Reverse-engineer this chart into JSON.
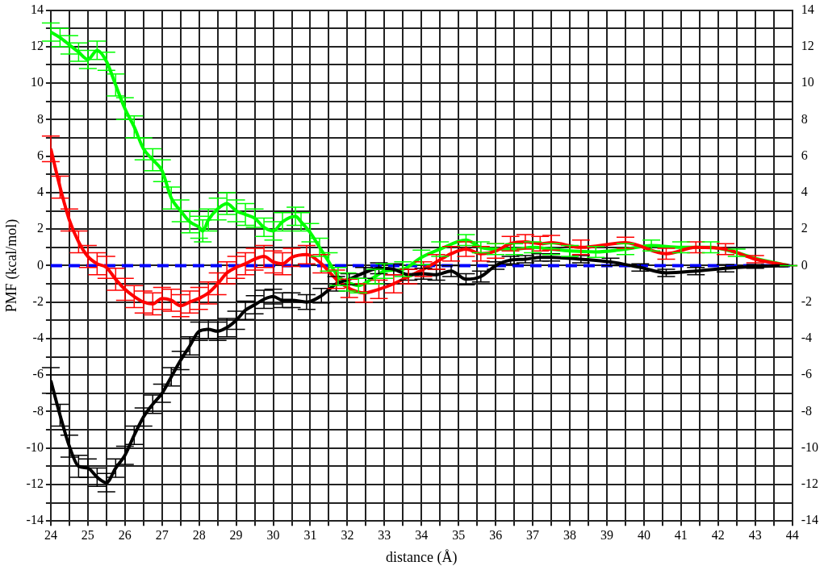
{
  "chart_data": {
    "type": "line",
    "xlabel": "distance (Å)",
    "ylabel": "PMF (kcal/mol)",
    "xlim": [
      24,
      44
    ],
    "ylim": [
      -14,
      14
    ],
    "y2lim": [
      -14,
      14
    ],
    "xticks": [
      24,
      {
        "value": 24.5,
        "label": null
      },
      25,
      {
        "value": 25.5,
        "label": null
      },
      26,
      {
        "value": 26.5,
        "label": null
      },
      27,
      {
        "value": 27.5,
        "label": null
      },
      28,
      {
        "value": 28.5,
        "label": null
      },
      29,
      {
        "value": 29.5,
        "label": null
      },
      30,
      {
        "value": 30.5,
        "label": null
      },
      31,
      {
        "value": 31.5,
        "label": null
      },
      32,
      {
        "value": 32.5,
        "label": null
      },
      33,
      {
        "value": 33.5,
        "label": null
      },
      34,
      {
        "value": 34.5,
        "label": null
      },
      35,
      {
        "value": 35.5,
        "label": null
      },
      36,
      {
        "value": 36.5,
        "label": null
      },
      37,
      {
        "value": 37.5,
        "label": null
      },
      38,
      {
        "value": 38.5,
        "label": null
      },
      39,
      {
        "value": 39.5,
        "label": null
      },
      40,
      {
        "value": 40.5,
        "label": null
      },
      41,
      {
        "value": 41.5,
        "label": null
      },
      42,
      {
        "value": 42.5,
        "label": null
      },
      43,
      {
        "value": 43.5,
        "label": null
      },
      44
    ],
    "yticks": [
      -14,
      {
        "value": -13,
        "label": null
      },
      -12,
      {
        "value": -11,
        "label": null
      },
      -10,
      {
        "value": -9,
        "label": null
      },
      -8,
      {
        "value": -7,
        "label": null
      },
      -6,
      {
        "value": -5,
        "label": null
      },
      -4,
      {
        "value": -3,
        "label": null
      },
      -2,
      {
        "value": -1,
        "label": null
      },
      0,
      {
        "value": 1,
        "label": null
      },
      2,
      {
        "value": 3,
        "label": null
      },
      4,
      {
        "value": 5,
        "label": null
      },
      6,
      {
        "value": 7,
        "label": null
      },
      8,
      {
        "value": 9,
        "label": null
      },
      10,
      {
        "value": 11,
        "label": null
      },
      12,
      {
        "value": 13,
        "label": null
      },
      14
    ],
    "y2ticks": [
      -14,
      -12,
      -10,
      -8,
      -6,
      -4,
      -2,
      0,
      2,
      4,
      6,
      8,
      10,
      12,
      14
    ],
    "grid": true,
    "legend": false,
    "marker": "none",
    "line_style": "solid",
    "ref_lines": [
      {
        "axis": "y",
        "value": 0,
        "label": null,
        "color": "#0000ff",
        "line_style": "dashed"
      }
    ],
    "series": [
      {
        "color": "#000000",
        "x": [
          24,
          24.25,
          24.5,
          24.75,
          25,
          25.25,
          25.5,
          25.75,
          26,
          26.25,
          26.5,
          26.75,
          27,
          27.25,
          27.5,
          27.75,
          28,
          28.25,
          28.5,
          28.75,
          29,
          29.25,
          29.5,
          29.75,
          30,
          30.25,
          30.5,
          30.9,
          31.3,
          31.7,
          32.05,
          32.45,
          32.85,
          33.25,
          33.65,
          34.05,
          34.4,
          34.8,
          35.2,
          35.6,
          36,
          36.4,
          36.8,
          37.2,
          37.5,
          38.3,
          39.1,
          39.9,
          40.6,
          41.4,
          42.2,
          43,
          43.9
        ],
        "values": [
          -6.3,
          -8.2,
          -9.9,
          -11,
          -11.1,
          -11.6,
          -11.9,
          -11.1,
          -10.4,
          -9.3,
          -8.3,
          -7.6,
          -7,
          -6.1,
          -5.2,
          -4.4,
          -3.6,
          -3.5,
          -3.6,
          -3.4,
          -3,
          -2.45,
          -2.15,
          -1.85,
          -1.7,
          -1.9,
          -1.9,
          -2,
          -1.65,
          -1,
          -0.75,
          -0.4,
          -0.15,
          -0.2,
          -0.5,
          -0.45,
          -0.5,
          -0.3,
          -0.75,
          -0.6,
          0,
          0.3,
          0.35,
          0.45,
          0.45,
          0.35,
          0.2,
          -0.1,
          -0.4,
          -0.3,
          -0.15,
          -0.05,
          0
        ],
        "errors": [
          0.7,
          0.6,
          0.6,
          0.6,
          0.5,
          0.5,
          0.5,
          0.5,
          0.5,
          0.5,
          0.5,
          0.5,
          0.5,
          0.5,
          0.5,
          0.5,
          0.5,
          0.5,
          0.5,
          0.5,
          0.5,
          0.5,
          0.5,
          0.5,
          0.4,
          0.4,
          0.4,
          0.4,
          0.4,
          0.4,
          0.3,
          0.3,
          0.3,
          0.3,
          0.3,
          0.3,
          0.3,
          0.3,
          0.3,
          0.3,
          0.2,
          0.2,
          0.2,
          0.2,
          0.2,
          0.2,
          0.2,
          0.2,
          0.2,
          0.2,
          0.2,
          0.1,
          0
        ]
      },
      {
        "color": "#ff0000",
        "x": [
          24,
          24.25,
          24.5,
          24.75,
          25,
          25.25,
          25.5,
          25.75,
          26,
          26.25,
          26.5,
          26.75,
          27,
          27.25,
          27.5,
          27.75,
          28,
          28.25,
          28.5,
          28.75,
          29,
          29.25,
          29.5,
          29.75,
          30,
          30.25,
          30.5,
          30.9,
          31.3,
          31.7,
          32.05,
          32.45,
          32.85,
          33.25,
          33.65,
          34.05,
          34.4,
          34.8,
          35.2,
          35.6,
          36,
          36.4,
          36.8,
          37.2,
          37.5,
          38.3,
          39.5,
          40.6,
          41.4,
          42.2,
          43,
          43.9
        ],
        "values": [
          6.4,
          4.3,
          2.5,
          1.3,
          0.5,
          0.1,
          -0.1,
          -0.75,
          -1.3,
          -1.7,
          -2,
          -2.1,
          -1.8,
          -1.9,
          -2.2,
          -2,
          -1.8,
          -1.5,
          -1,
          -0.4,
          -0.1,
          0.1,
          0.35,
          0.5,
          0.2,
          0.1,
          0.45,
          0.6,
          0.1,
          -0.75,
          -1.25,
          -1.5,
          -1.3,
          -1,
          -0.6,
          -0.2,
          0.2,
          0.65,
          0.9,
          0.65,
          0.8,
          1.2,
          1.3,
          1.2,
          1.25,
          1,
          1.25,
          0.65,
          1,
          0.9,
          0.35,
          0
        ],
        "errors": [
          0.7,
          0.6,
          0.6,
          0.6,
          0.6,
          0.6,
          0.6,
          0.6,
          0.6,
          0.6,
          0.6,
          0.6,
          0.6,
          0.6,
          0.6,
          0.6,
          0.6,
          0.6,
          0.6,
          0.6,
          0.6,
          0.6,
          0.6,
          0.6,
          0.6,
          0.6,
          0.5,
          0.5,
          0.5,
          0.5,
          0.5,
          0.5,
          0.5,
          0.5,
          0.4,
          0.4,
          0.4,
          0.4,
          0.4,
          0.4,
          0.4,
          0.4,
          0.4,
          0.4,
          0.4,
          0.4,
          0.3,
          0.3,
          0.3,
          0.3,
          0.2,
          0
        ]
      },
      {
        "color": "#00ff00",
        "x": [
          24,
          24.25,
          24.5,
          24.75,
          25,
          25.25,
          25.5,
          25.75,
          26,
          26.25,
          26.5,
          26.75,
          27,
          27.25,
          27.5,
          27.75,
          28,
          28.1,
          28.25,
          28.5,
          28.75,
          29,
          29.25,
          29.5,
          29.75,
          30,
          30.25,
          30.6,
          30.75,
          31,
          31.25,
          31.5,
          31.75,
          32,
          32.3,
          32.75,
          33,
          33.5,
          34,
          34.5,
          35.2,
          35.6,
          36,
          36.5,
          37,
          37.5,
          38,
          38.7,
          39.5,
          40.2,
          41,
          41.8,
          42.5,
          43,
          43.9
        ],
        "values": [
          12.8,
          12.5,
          12.1,
          11.7,
          11.3,
          11.8,
          11.2,
          9.9,
          8.6,
          7.6,
          6.4,
          5.8,
          5.2,
          3.7,
          3,
          2.4,
          2.1,
          1.9,
          2.5,
          3.1,
          3.4,
          3,
          2.8,
          2.6,
          2.1,
          1.9,
          2.4,
          2.7,
          2.4,
          1.8,
          1,
          0.2,
          -0.6,
          -0.9,
          -1.1,
          -0.6,
          -0.3,
          -0.2,
          0.45,
          0.9,
          1.4,
          1,
          0.9,
          0.9,
          1,
          0.9,
          0.8,
          0.75,
          0.9,
          1.1,
          1,
          1,
          0.7,
          0.4,
          0
        ],
        "errors": [
          0.5,
          0.5,
          0.5,
          0.5,
          0.5,
          0.5,
          0.5,
          0.6,
          0.6,
          0.6,
          0.6,
          0.6,
          0.6,
          0.6,
          0.6,
          0.6,
          0.6,
          0.6,
          0.6,
          0.6,
          0.6,
          0.6,
          0.6,
          0.5,
          0.5,
          0.5,
          0.5,
          0.5,
          0.5,
          0.5,
          0.5,
          0.5,
          0.5,
          0.5,
          0.4,
          0.4,
          0.4,
          0.4,
          0.4,
          0.4,
          0.3,
          0.3,
          0.3,
          0.3,
          0.3,
          0.3,
          0.3,
          0.3,
          0.3,
          0.3,
          0.3,
          0.3,
          0.2,
          null,
          0
        ]
      }
    ]
  }
}
